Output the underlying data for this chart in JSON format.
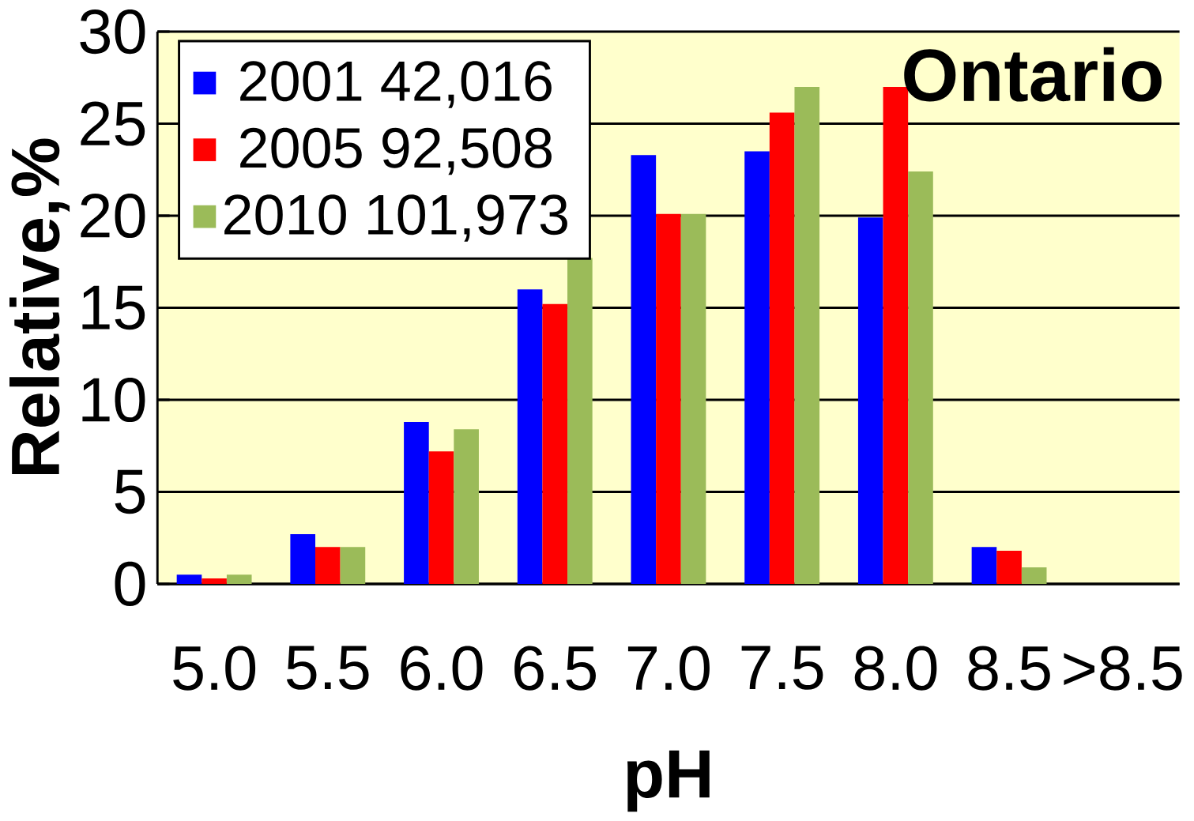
{
  "chart_data": {
    "type": "bar",
    "title": "Ontario",
    "xlabel": "pH",
    "ylabel": "Relative,%",
    "categories": [
      "5.0",
      "5.5",
      "6.0",
      "6.5",
      "7.0",
      "7.5",
      "8.0",
      "8.5",
      ">8.5"
    ],
    "series": [
      {
        "name": "2001  42,016",
        "color": "#0000ff",
        "values": [
          0.5,
          2.7,
          8.8,
          16,
          23.3,
          23.5,
          19.9,
          2.0,
          0
        ]
      },
      {
        "name": "2005  92,508",
        "color": "#ff0000",
        "values": [
          0.3,
          2.0,
          7.2,
          15.2,
          20.1,
          25.6,
          27.0,
          1.8,
          0
        ]
      },
      {
        "name": "2010  101,973",
        "color": "#9bbb59",
        "values": [
          0.5,
          2.0,
          8.4,
          17.7,
          20.1,
          27.0,
          22.4,
          0.9,
          0
        ]
      }
    ],
    "ylim": [
      0,
      30
    ],
    "yticks": [
      0,
      5,
      10,
      15,
      20,
      25,
      30
    ],
    "grid": "y",
    "legend": "top left"
  }
}
